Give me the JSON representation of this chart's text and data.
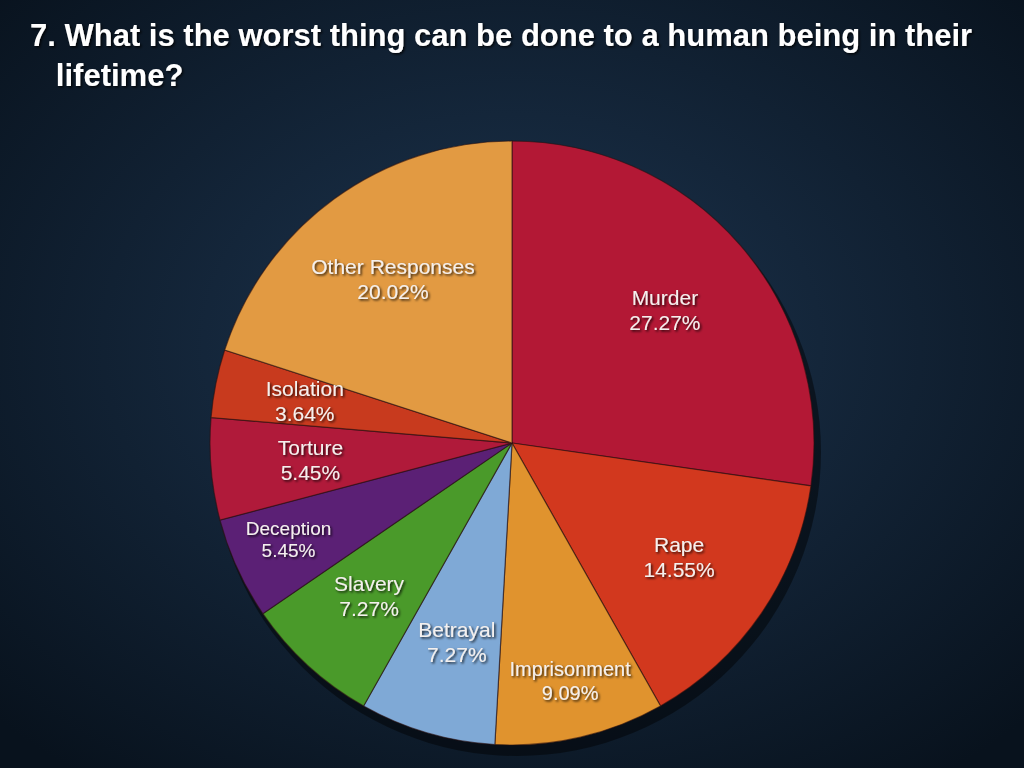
{
  "chart_data": {
    "type": "pie",
    "title": "7. What is the worst thing can be done to a human being in their lifetime?",
    "categories": [
      "Murder",
      "Rape",
      "Imprisonment",
      "Betrayal",
      "Slavery",
      "Deception",
      "Torture",
      "Isolation",
      "Other Responses"
    ],
    "values": [
      27.27,
      14.55,
      9.09,
      7.27,
      7.27,
      5.45,
      5.45,
      3.64,
      20.02
    ],
    "value_labels": [
      "27.27%",
      "14.55%",
      "9.09%",
      "7.27%",
      "7.27%",
      "5.45%",
      "5.45%",
      "3.64%",
      "20.02%"
    ],
    "colors": [
      "#b31835",
      "#d2381e",
      "#e0932e",
      "#7fa9d6",
      "#4a9a2a",
      "#5b2075",
      "#b01a3a",
      "#c83a1e",
      "#e29a42"
    ],
    "legend": false
  }
}
